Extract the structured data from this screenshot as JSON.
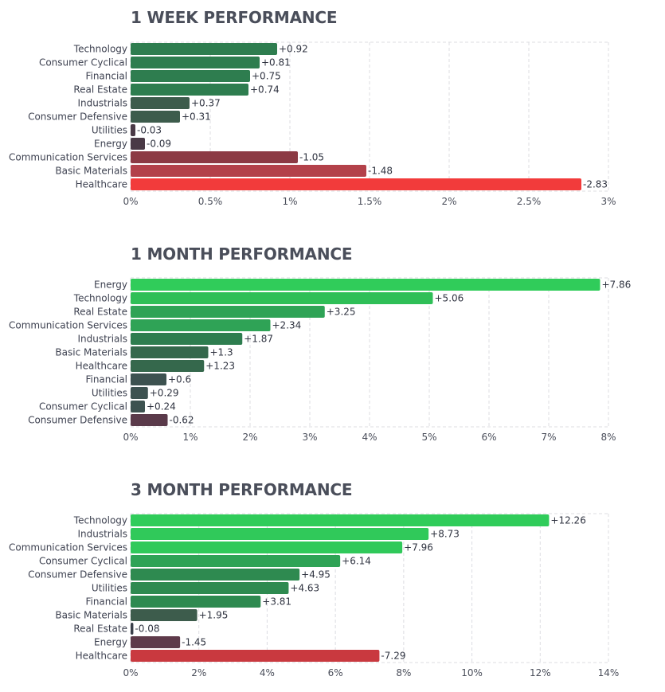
{
  "chart_data": [
    {
      "type": "bar",
      "orientation": "horizontal",
      "title": "1 WEEK PERFORMANCE",
      "categories": [
        "Technology",
        "Consumer Cyclical",
        "Financial",
        "Real Estate",
        "Industrials",
        "Consumer Defensive",
        "Utilities",
        "Energy",
        "Communication Services",
        "Basic Materials",
        "Healthcare"
      ],
      "values": [
        0.92,
        0.81,
        0.75,
        0.74,
        0.37,
        0.31,
        -0.03,
        -0.09,
        -1.05,
        -1.48,
        -2.83
      ],
      "value_labels": [
        "+0.92",
        "+0.81",
        "+0.75",
        "+0.74",
        "+0.37",
        "+0.31",
        "-0.03",
        "-0.09",
        "-1.05",
        "-1.48",
        "-2.83"
      ],
      "ticks": [
        0,
        0.5,
        1,
        1.5,
        2,
        2.5,
        3
      ],
      "tick_labels": [
        "0%",
        "0.5%",
        "1%",
        "1.5%",
        "2%",
        "2.5%",
        "3%"
      ],
      "xlim": [
        0,
        3
      ],
      "colors": [
        "#2e7d4f",
        "#2e7d4f",
        "#2e7d4f",
        "#2e7d4f",
        "#3d5c4c",
        "#3d5c4c",
        "#4a3a46",
        "#4a3a46",
        "#8c3a44",
        "#b3414a",
        "#f23b3b"
      ],
      "axis_note": "bar length = absolute value"
    },
    {
      "type": "bar",
      "orientation": "horizontal",
      "title": "1 MONTH PERFORMANCE",
      "categories": [
        "Energy",
        "Technology",
        "Real Estate",
        "Communication Services",
        "Industrials",
        "Basic Materials",
        "Healthcare",
        "Financial",
        "Utilities",
        "Consumer Cyclical",
        "Consumer Defensive"
      ],
      "values": [
        7.86,
        5.06,
        3.25,
        2.34,
        1.87,
        1.3,
        1.23,
        0.6,
        0.29,
        0.24,
        -0.62
      ],
      "value_labels": [
        "+7.86",
        "+5.06",
        "+3.25",
        "+2.34",
        "+1.87",
        "+1.3",
        "+1.23",
        "+0.6",
        "+0.29",
        "+0.24",
        "-0.62"
      ],
      "ticks": [
        0,
        1,
        2,
        3,
        4,
        5,
        6,
        7,
        8
      ],
      "tick_labels": [
        "0%",
        "1%",
        "2%",
        "3%",
        "4%",
        "5%",
        "6%",
        "7%",
        "8%"
      ],
      "xlim": [
        0,
        8
      ],
      "colors": [
        "#30cc5a",
        "#2fbf57",
        "#2fa356",
        "#2fa356",
        "#2e7d4f",
        "#35684c",
        "#35684c",
        "#3d5250",
        "#3d5250",
        "#3d5250",
        "#5a3a4a"
      ],
      "axis_note": "bar length = absolute value"
    },
    {
      "type": "bar",
      "orientation": "horizontal",
      "title": "3 MONTH PERFORMANCE",
      "categories": [
        "Technology",
        "Industrials",
        "Communication Services",
        "Consumer Cyclical",
        "Consumer Defensive",
        "Utilities",
        "Financial",
        "Basic Materials",
        "Real Estate",
        "Energy",
        "Healthcare"
      ],
      "values": [
        12.26,
        8.73,
        7.96,
        6.14,
        4.95,
        4.63,
        3.81,
        1.95,
        -0.08,
        -1.45,
        -7.29
      ],
      "value_labels": [
        "+12.26",
        "+8.73",
        "+7.96",
        "+6.14",
        "+4.95",
        "+4.63",
        "+3.81",
        "+1.95",
        "-0.08",
        "-1.45",
        "-7.29"
      ],
      "ticks": [
        0,
        2,
        4,
        6,
        8,
        10,
        12,
        14
      ],
      "tick_labels": [
        "0%",
        "2%",
        "4%",
        "6%",
        "8%",
        "10%",
        "12%",
        "14%"
      ],
      "xlim": [
        0,
        14
      ],
      "colors": [
        "#30cc5a",
        "#30c95a",
        "#30c95a",
        "#2fa356",
        "#2e8a50",
        "#2e8a50",
        "#2e8a50",
        "#3d5c4c",
        "#3a3f4a",
        "#5e3a4a",
        "#c9393f"
      ],
      "axis_note": "bar length = absolute value"
    }
  ]
}
